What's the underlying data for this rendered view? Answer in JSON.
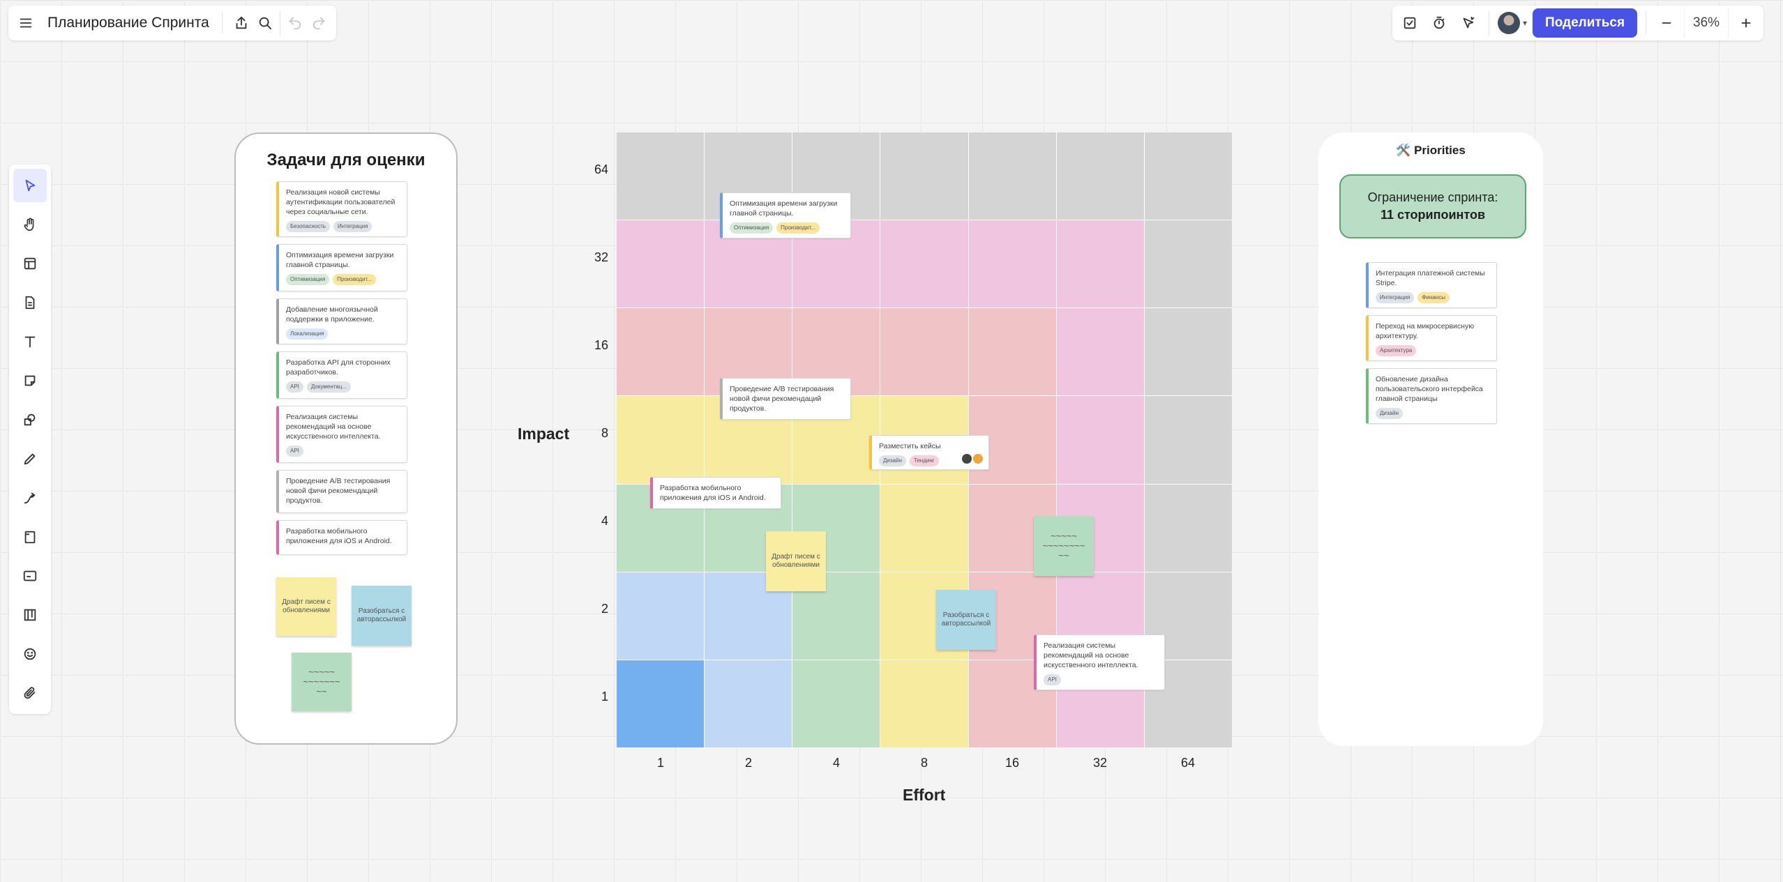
{
  "header": {
    "title": "Планирование Спринта",
    "share_label": "Поделиться",
    "zoom": "36%"
  },
  "backlog": {
    "title": "Задачи для оценки",
    "cards": [
      {
        "text": "Реализация новой системы аутентификации пользователей через социальные сети.",
        "tags": [
          "Безопасность",
          "Интеграция"
        ],
        "color": "#f1c441"
      },
      {
        "text": "Оптимизация времени загрузки главной страницы.",
        "tags": [
          "Оптимизация",
          "Производит..."
        ],
        "color": "#6b9be0"
      },
      {
        "text": "Добавление многоязычной поддержки в приложение.",
        "tags": [
          "Локализация"
        ],
        "color": "#a0a0a0"
      },
      {
        "text": "Разработка API для сторонних разработчиков.",
        "tags": [
          "API",
          "Документац..."
        ],
        "color": "#6fb983"
      },
      {
        "text": "Реализация системы рекомендаций на основе искусственного интеллекта.",
        "tags": [
          "API"
        ],
        "color": "#d96aa8"
      },
      {
        "text": "Проведение A/B тестирования новой фичи рекомендаций продуктов.",
        "tags": [],
        "color": "#b0b0b0"
      },
      {
        "text": "Разработка мобильного приложения для iOS и Android.",
        "tags": [],
        "color": "#d96aa8"
      }
    ],
    "stickies": [
      {
        "text": "Драфт писем с обновлениями",
        "color": "#f8eda0"
      },
      {
        "text": "Разобраться с авторассылкой",
        "color": "#add8e6"
      },
      {
        "text": "~~~~~ ~~~~~~~ ~~",
        "color": "#b3dcc0"
      }
    ]
  },
  "matrix": {
    "y_axis_title": "Impact",
    "x_axis_title": "Effort",
    "y_ticks": [
      "64",
      "32",
      "16",
      "8",
      "4",
      "2",
      "1"
    ],
    "x_ticks": [
      "1",
      "2",
      "4",
      "8",
      "16",
      "32",
      "64"
    ],
    "colors": {
      "gray": "#d4d4d4",
      "pink": "#efc5e0",
      "red": "#f0c3c6",
      "yellow": "#f7eba0",
      "green": "#bde0c5",
      "lightblue": "#c0d8f5",
      "blue": "#74b0f0"
    },
    "rows": [
      [
        "gray",
        "gray",
        "gray",
        "gray",
        "gray",
        "gray",
        "gray"
      ],
      [
        "pink",
        "pink",
        "pink",
        "pink",
        "pink",
        "pink",
        "gray"
      ],
      [
        "red",
        "red",
        "red",
        "red",
        "red",
        "pink",
        "gray"
      ],
      [
        "yellow",
        "yellow",
        "yellow",
        "yellow",
        "red",
        "pink",
        "gray"
      ],
      [
        "green",
        "green",
        "green",
        "yellow",
        "red",
        "pink",
        "gray"
      ],
      [
        "lightblue",
        "lightblue",
        "green",
        "yellow",
        "red",
        "pink",
        "gray"
      ],
      [
        "blue",
        "lightblue",
        "green",
        "yellow",
        "red",
        "pink",
        "gray"
      ]
    ],
    "cards": [
      {
        "text": "Оптимизация времени загрузки главной страницы.",
        "tags": [
          "Оптимизация",
          "Производит..."
        ],
        "color": "#6b9be0"
      },
      {
        "text": "Проведение A/B тестирования новой фичи рекомендаций продуктов.",
        "tags": [],
        "color": "#b0b0b0"
      },
      {
        "text": "Разместить кейсы",
        "tags": [
          "Дизайн",
          "Тендинг"
        ],
        "color": "#f1c441"
      },
      {
        "text": "Разработка мобильного приложения для iOS и Android.",
        "tags": [],
        "color": "#d96aa8"
      },
      {
        "text": "Реализация системы рекомендаций на основе искусственного интеллекта.",
        "tags": [
          "API"
        ],
        "color": "#d96aa8"
      }
    ],
    "stickies": [
      {
        "text": "Драфт писем с обновлениями",
        "color": "#f8eda0"
      },
      {
        "text": "Разобраться с авторассылкой",
        "color": "#add8e6"
      },
      {
        "text": "~~~~~ ~~~~~~~~ ~~",
        "color": "#b3dcc0"
      }
    ]
  },
  "priorities": {
    "title": "🛠️ Priorities",
    "limit_line1": "Ограничение спринта:",
    "limit_line2": "11 сторипоинтов",
    "cards": [
      {
        "text": "Интеграция платежной системы Stripe.",
        "tags": [
          "Интеграция",
          "Финансы"
        ],
        "color": "#6b9be0"
      },
      {
        "text": "Переход на микросервисную архитектуру.",
        "tags": [
          "Архитектура"
        ],
        "color": "#f1c441"
      },
      {
        "text": "Обновление дизайна пользовательского интерфейса главной страницы",
        "tags": [
          "Дизайн"
        ],
        "color": "#6fb983"
      }
    ]
  }
}
